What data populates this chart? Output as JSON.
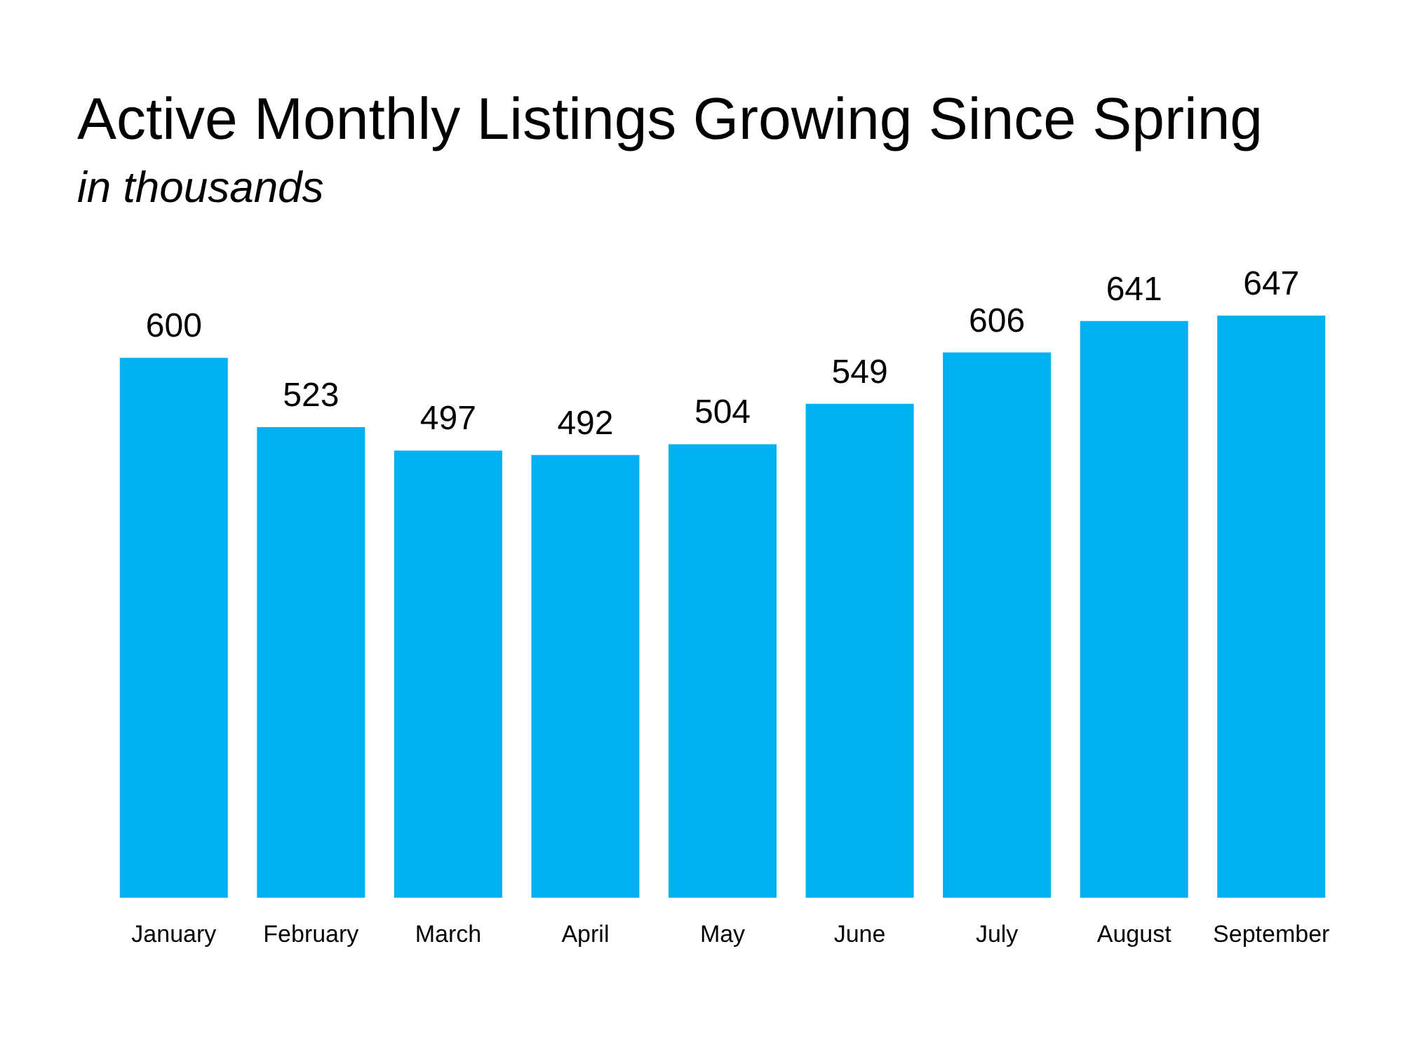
{
  "chart_data": {
    "type": "bar",
    "title": "Active Monthly Listings Growing Since Spring",
    "subtitle": "in thousands",
    "categories": [
      "January",
      "February",
      "March",
      "April",
      "May",
      "June",
      "July",
      "August",
      "September"
    ],
    "values": [
      600,
      523,
      497,
      492,
      504,
      549,
      606,
      641,
      647
    ],
    "color": "#00b0f0",
    "data_labels": true
  }
}
